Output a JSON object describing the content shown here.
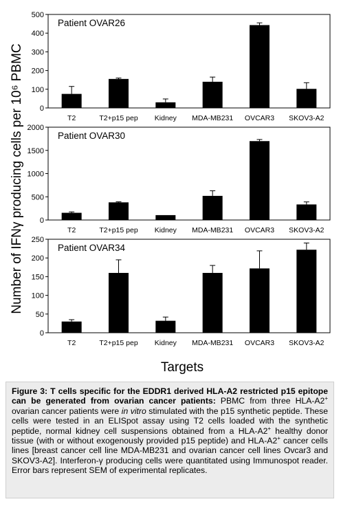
{
  "ylabel": "Number of IFNγ producing cells per 10⁶ PBMC",
  "xlabel": "Targets",
  "chart_data": [
    {
      "type": "bar",
      "title": "Patient OVAR26",
      "categories": [
        "T2",
        "T2+p15 pep",
        "Kidney",
        "MDA-MB231",
        "OVCAR3",
        "SKOV3-A2"
      ],
      "values": [
        75,
        155,
        30,
        140,
        443,
        102
      ],
      "errors": [
        40,
        5,
        18,
        25,
        12,
        33
      ],
      "ylim": [
        0,
        500
      ],
      "yticks": [
        0,
        100,
        200,
        300,
        400,
        500
      ],
      "grid": false,
      "bar_color": "#000000"
    },
    {
      "type": "bar",
      "title": "Patient OVAR30",
      "categories": [
        "T2",
        "T2+p15 pep",
        "Kidney",
        "MDA-MB231",
        "OVCAR3",
        "SKOV3-A2"
      ],
      "values": [
        155,
        380,
        105,
        520,
        1700,
        335
      ],
      "errors": [
        20,
        12,
        0,
        110,
        35,
        55
      ],
      "ylim": [
        0,
        2000
      ],
      "yticks": [
        0,
        500,
        1000,
        1500,
        2000
      ],
      "grid": false,
      "bar_color": "#000000"
    },
    {
      "type": "bar",
      "title": "Patient OVAR34",
      "categories": [
        "T2",
        "T2+p15 pep",
        "Kidney",
        "MDA-MB231",
        "OVCAR3",
        "SKOV3-A2"
      ],
      "values": [
        30,
        160,
        32,
        160,
        172,
        222
      ],
      "errors": [
        5,
        35,
        10,
        20,
        47,
        18
      ],
      "ylim": [
        0,
        250
      ],
      "yticks": [
        0,
        50,
        100,
        150,
        200,
        250
      ],
      "grid": false,
      "bar_color": "#000000"
    }
  ],
  "caption": {
    "bold": "Figure 3: T cells specific for the EDDR1 derived HLA-A2 restricted p15 epitope can be generated from ovarian cancer patients:",
    "t1": " PBMC from three HLA-A2",
    "sup1": "+",
    "t2": " ovarian cancer patients were ",
    "italic": "in vitro",
    "t3": " stimulated with the p15 synthetic peptide.  These cells were tested in an ELISpot assay using T2 cells loaded with the synthetic peptide, normal kidney cell suspensions obtained from a HLA-A2",
    "sup2": "+",
    "t4": " healthy donor tissue (with or without exogenously provided p15 peptide) and HLA-A2",
    "sup3": "+",
    "t5": " cancer cells lines [breast cancer cell line MDA-MB231 and ovarian cancer cell lines Ovcar3 and SKOV3-A2].  Interferon-γ producing cells were quantitated using Immunospot reader. Error bars represent SEM of experimental replicates."
  }
}
